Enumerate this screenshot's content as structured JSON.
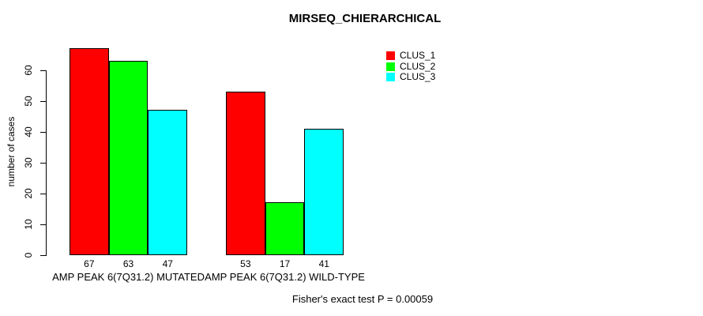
{
  "chart_data": {
    "type": "bar",
    "title": "MIRSEQ_CHIERARCHICAL",
    "xlabel": "",
    "ylabel": "number of cases",
    "categories": [
      "AMP PEAK 6(7Q31.2) MUTATED",
      "AMP PEAK 6(7Q31.2) WILD-TYPE"
    ],
    "series": [
      {
        "name": "CLUS_1",
        "color": "#FF0000",
        "values": [
          67,
          53
        ]
      },
      {
        "name": "CLUS_2",
        "color": "#00FF00",
        "values": [
          63,
          17
        ]
      },
      {
        "name": "CLUS_3",
        "color": "#00FFFF",
        "values": [
          47,
          41
        ]
      }
    ],
    "bar_value_labels": [
      [
        67,
        63,
        47
      ],
      [
        53,
        17,
        41
      ]
    ],
    "yticks": [
      0,
      10,
      20,
      30,
      40,
      50,
      60
    ],
    "ylim": [
      0,
      60
    ],
    "grid": false,
    "legend_position": "top-right",
    "annotation": "Fisher's exact test P = 0.00059",
    "bar_border_color": "#000000",
    "axis_color": "#000000",
    "background": "#FFFFFF"
  }
}
